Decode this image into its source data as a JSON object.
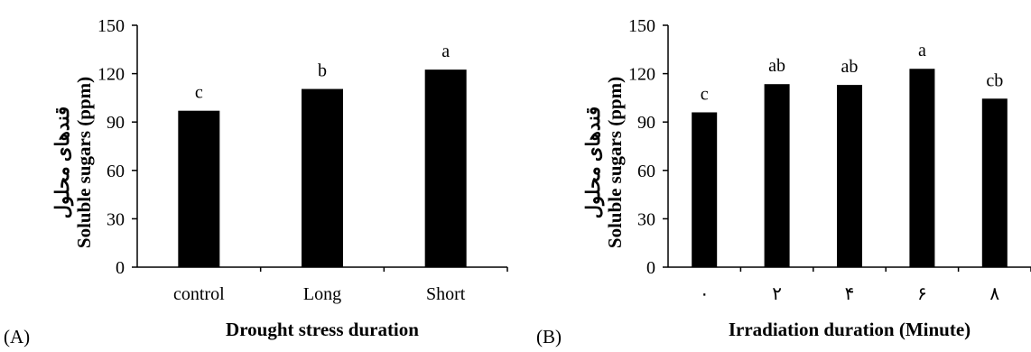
{
  "chart_data": [
    {
      "type": "bar",
      "panel_label": "(A)",
      "categories": [
        "control",
        "Long",
        "Short"
      ],
      "values": [
        97,
        110.5,
        122.5
      ],
      "significance_letters": [
        "c",
        "b",
        "a"
      ],
      "xlabel": "Drought stress duration",
      "ylabel": "Soluble sugars (ppm)",
      "ylabel_persian": "قندهای محلول",
      "ylim": [
        0,
        150
      ],
      "yticks": [
        0,
        30,
        60,
        90,
        120,
        150
      ],
      "grid": false,
      "bar_color": "#000000"
    },
    {
      "type": "bar",
      "panel_label": "(B)",
      "categories": [
        "۰",
        "۲",
        "۴",
        "۶",
        "۸"
      ],
      "values": [
        96,
        113.5,
        113,
        123,
        104.5
      ],
      "significance_letters": [
        "c",
        "ab",
        "ab",
        "a",
        "cb"
      ],
      "xlabel": "Irradiation duration (Minute)",
      "ylabel": "Soluble sugars (ppm)",
      "ylabel_persian": "قندهای محلول",
      "ylim": [
        0,
        150
      ],
      "yticks": [
        0,
        30,
        60,
        90,
        120,
        150
      ],
      "grid": false,
      "bar_color": "#000000"
    }
  ]
}
